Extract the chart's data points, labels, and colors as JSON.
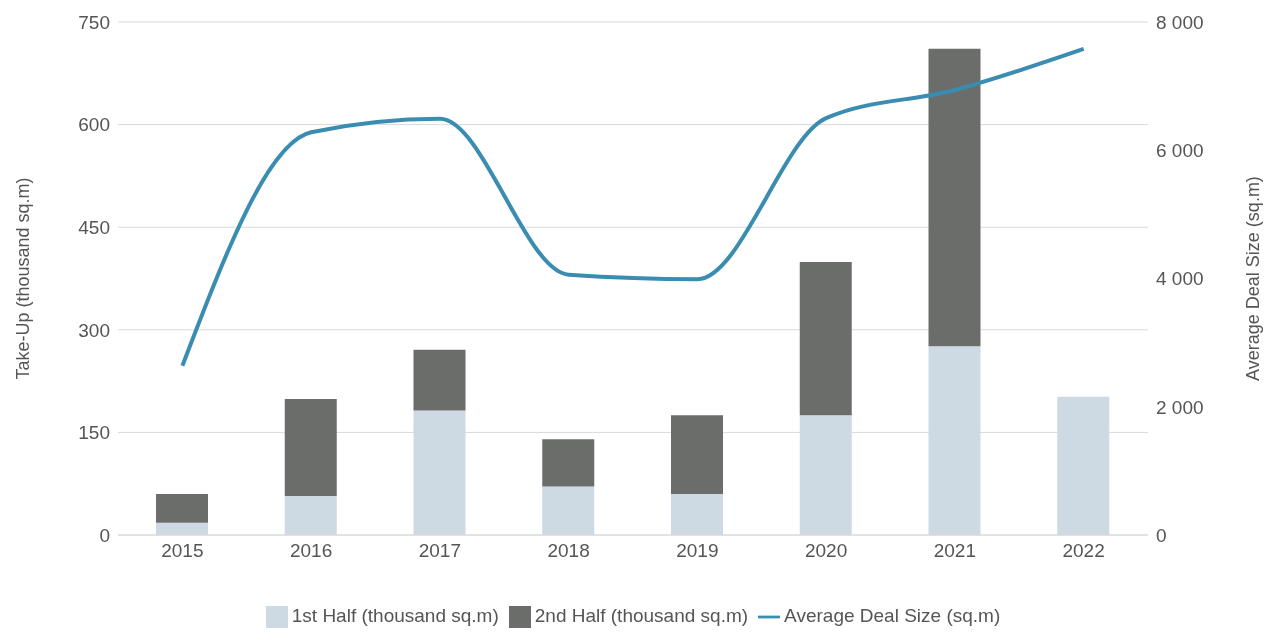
{
  "chart_data": {
    "type": "bar",
    "stacked": true,
    "categories": [
      "2015",
      "2016",
      "2017",
      "2018",
      "2019",
      "2020",
      "2021",
      "2022"
    ],
    "series": [
      {
        "name": "1st Half (thousand sq.m)",
        "color": "#cdd9e3",
        "values": [
          18,
          57,
          182,
          71,
          60,
          175,
          276,
          202
        ]
      },
      {
        "name": "2nd Half (thousand sq.m)",
        "color": "#6b6d6b",
        "values": [
          42,
          142,
          89,
          69,
          115,
          224,
          435,
          null
        ]
      },
      {
        "name": "Average Deal Size (sq.m)",
        "type": "line",
        "axis": "y2",
        "color": "#3a8db0",
        "values": [
          2640,
          6280,
          6490,
          4060,
          3990,
          6500,
          6940,
          7580
        ]
      }
    ],
    "ylabel": "Take-Up (thousand sq.m)",
    "y2label": "Average Deal Size (sq.m)",
    "ylim": [
      0,
      750
    ],
    "yticks": [
      0,
      150,
      300,
      450,
      600,
      750
    ],
    "y2lim": [
      0,
      8000
    ],
    "y2ticks": [
      0,
      {
        "value": 2000,
        "label": "2 000"
      },
      {
        "value": 4000,
        "label": "4 000"
      },
      {
        "value": 6000,
        "label": "6 000"
      },
      {
        "value": 8000,
        "label": "8 000"
      }
    ],
    "grid": "y",
    "legend": "bottom",
    "marker": "none"
  }
}
